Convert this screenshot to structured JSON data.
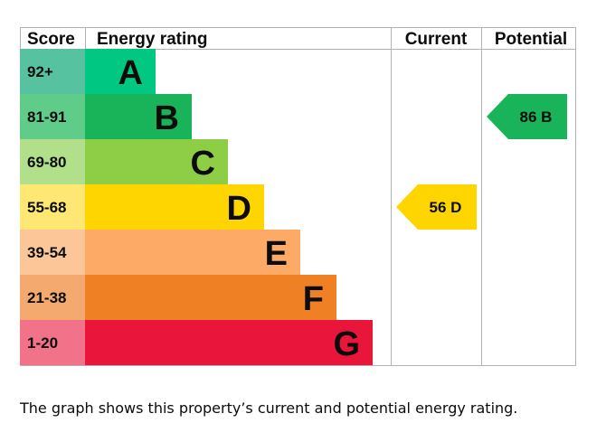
{
  "chart_data": {
    "type": "table",
    "headers": {
      "score": "Score",
      "rating": "Energy rating",
      "current": "Current",
      "potential": "Potential"
    },
    "bands": [
      {
        "band": "A",
        "range": "92+",
        "color": "#008054",
        "score_color": "#56c29f",
        "bar_color": "#00c781"
      },
      {
        "band": "B",
        "range": "81-91",
        "color": "#19b459",
        "score_color": "#5fcc8a",
        "bar_color": "#19b459"
      },
      {
        "band": "C",
        "range": "69-80",
        "color": "#8dce46",
        "score_color": "#b2e08a",
        "bar_color": "#8dce46"
      },
      {
        "band": "D",
        "range": "55-68",
        "color": "#ffd500",
        "score_color": "#ffe773",
        "bar_color": "#ffd500"
      },
      {
        "band": "E",
        "range": "39-54",
        "color": "#fcaa65",
        "score_color": "#fdc698",
        "bar_color": "#fcaa65"
      },
      {
        "band": "F",
        "range": "21-38",
        "color": "#ef8023",
        "score_color": "#f4aa6f",
        "bar_color": "#ef8023"
      },
      {
        "band": "G",
        "range": "1-20",
        "color": "#e9153b",
        "score_color": "#f27389",
        "bar_color": "#e9153b"
      }
    ],
    "current": {
      "value": 56,
      "band": "D",
      "label": "56 D",
      "color": "#ffd500"
    },
    "potential": {
      "value": 86,
      "band": "B",
      "label": "86 B",
      "color": "#19b459"
    }
  },
  "caption": "The graph shows this property’s current and potential energy rating."
}
